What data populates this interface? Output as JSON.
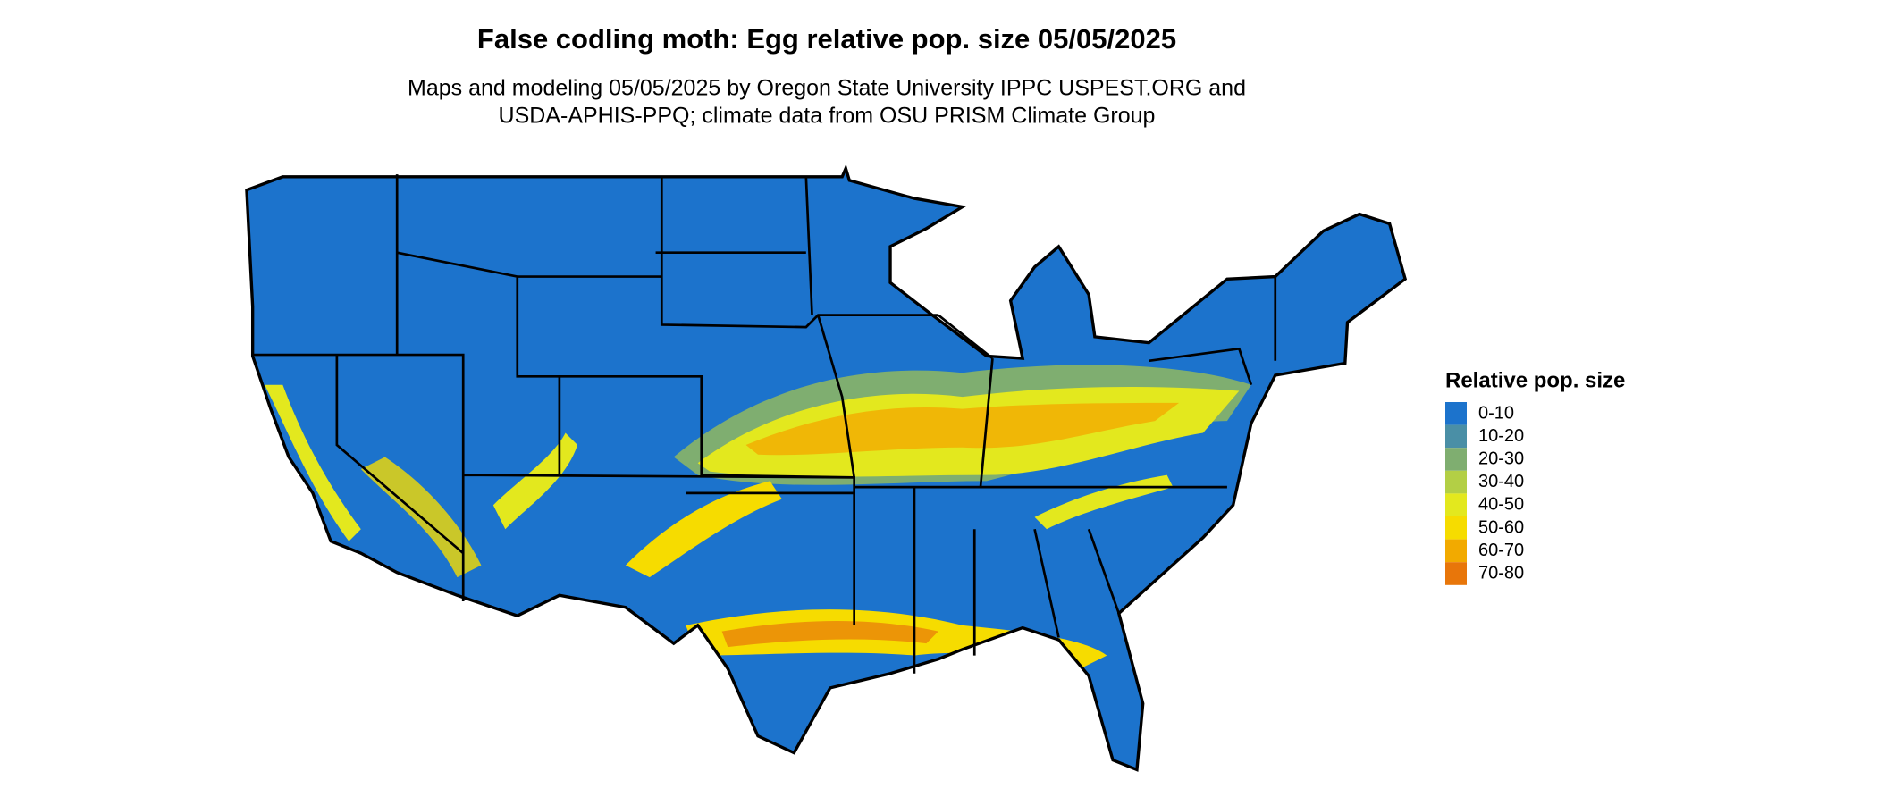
{
  "title": "False codling moth: Egg relative pop. size 05/05/2025",
  "subtitle": [
    "Maps and modeling 05/05/2025 by Oregon State University IPPC USPEST.ORG and",
    "USDA-APHIS-PPQ; climate data from OSU PRISM Climate Group"
  ],
  "legend": {
    "title": "Relative pop. size",
    "items": [
      {
        "label": "0-10",
        "color": "#1c73cc"
      },
      {
        "label": "10-20",
        "color": "#4a8fa6"
      },
      {
        "label": "20-30",
        "color": "#7fae70"
      },
      {
        "label": "30-40",
        "color": "#b3cf45"
      },
      {
        "label": "40-50",
        "color": "#e3e81e"
      },
      {
        "label": "50-60",
        "color": "#f6dc00"
      },
      {
        "label": "60-70",
        "color": "#f2aa00"
      },
      {
        "label": "70-80",
        "color": "#e8760a"
      }
    ]
  }
}
